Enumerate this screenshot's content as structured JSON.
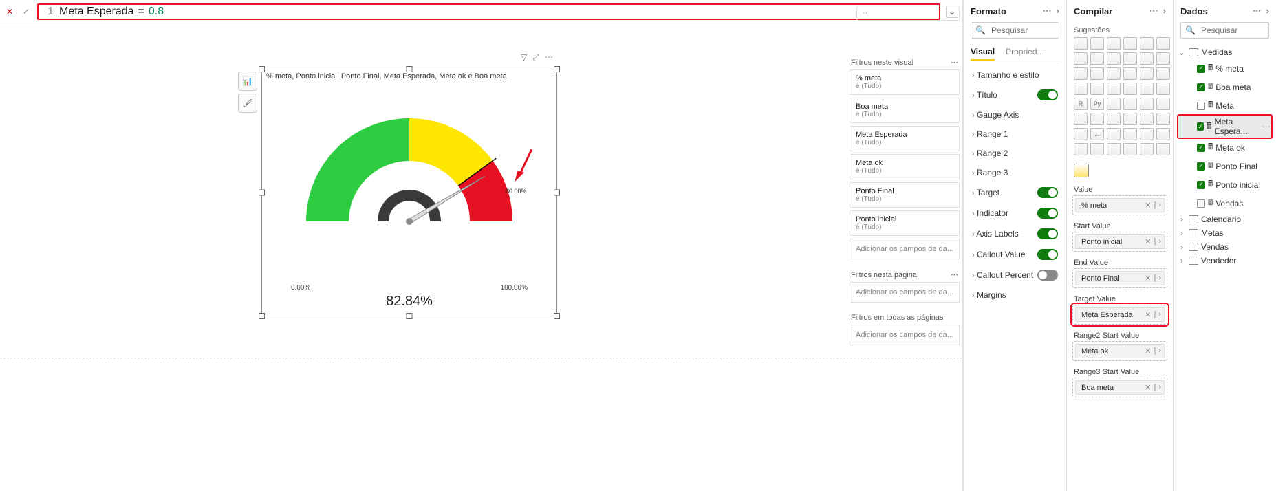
{
  "formula": {
    "line": "1",
    "lhs": "Meta Esperada",
    "op": "=",
    "rhs": "0.8"
  },
  "visual": {
    "title": "% meta, Ponto inicial, Ponto Final, Meta Esperada, Meta ok e Boa meta",
    "callout": "82.84%",
    "axis_min": "0.00%",
    "axis_max": "100.00%",
    "target_label": "80.00%",
    "gauge": {
      "value_pct": 82.84,
      "ranges": [
        {
          "from": 0,
          "to": 50,
          "color": "#2ecc40"
        },
        {
          "from": 50,
          "to": 80,
          "color": "#ffe600"
        },
        {
          "from": 80,
          "to": 100,
          "color": "#e81123"
        }
      ],
      "target_pct": 80,
      "track_inner_color": "#3a3a3a",
      "track_bg": "#e8e8e8"
    },
    "header_icons": [
      "filter-icon",
      "focus-icon",
      "more-icon"
    ],
    "side_tools": [
      "chart-type-icon",
      "format-paint-icon"
    ]
  },
  "filters": {
    "section1_title": "Filtros neste visual",
    "items": [
      {
        "name": "% meta",
        "value": "é (Tudo)"
      },
      {
        "name": "Boa meta",
        "value": "é (Tudo)"
      },
      {
        "name": "Meta Esperada",
        "value": "é (Tudo)"
      },
      {
        "name": "Meta ok",
        "value": "é (Tudo)"
      },
      {
        "name": "Ponto Final",
        "value": "é (Tudo)"
      },
      {
        "name": "Ponto inicial",
        "value": "é (Tudo)"
      }
    ],
    "add_placeholder": "Adicionar os campos de da...",
    "section2_title": "Filtros nesta página",
    "section3_title": "Filtros em todas as páginas"
  },
  "formato": {
    "title": "Formato",
    "search_placeholder": "Pesquisar",
    "tabs": {
      "visual": "Visual",
      "general": "Propried..."
    },
    "rows": [
      {
        "label": "Tamanho e estilo",
        "toggle": null
      },
      {
        "label": "Título",
        "toggle": true
      },
      {
        "label": "Gauge Axis",
        "toggle": null
      },
      {
        "label": "Range 1",
        "toggle": null
      },
      {
        "label": "Range 2",
        "toggle": null
      },
      {
        "label": "Range 3",
        "toggle": null
      },
      {
        "label": "Target",
        "toggle": true
      },
      {
        "label": "Indicator",
        "toggle": true
      },
      {
        "label": "Axis Labels",
        "toggle": true
      },
      {
        "label": "Callout Value",
        "toggle": true
      },
      {
        "label": "Callout Percent",
        "toggle": false
      },
      {
        "label": "Margins",
        "toggle": null
      }
    ]
  },
  "compilar": {
    "title": "Compilar",
    "subhead": "Sugestões",
    "wells": [
      {
        "label": "Value",
        "chip": "% meta",
        "highlight": false
      },
      {
        "label": "Start Value",
        "chip": "Ponto inicial",
        "highlight": false
      },
      {
        "label": "End Value",
        "chip": "Ponto Final",
        "highlight": false
      },
      {
        "label": "Target Value",
        "chip": "Meta Esperada",
        "highlight": true
      },
      {
        "label": "Range2 Start Value",
        "chip": "Meta ok",
        "highlight": false
      },
      {
        "label": "Range3 Start Value",
        "chip": "Boa meta",
        "highlight": false
      }
    ],
    "viz_labels": [
      "",
      "",
      "",
      "",
      "",
      "",
      "",
      "",
      "",
      "",
      "",
      "",
      "",
      "",
      "",
      "",
      "",
      "",
      "",
      "",
      "",
      "",
      "",
      "",
      "R",
      "Py",
      "",
      "",
      "",
      "",
      "",
      "",
      "",
      "",
      "",
      "",
      "",
      "...",
      "",
      "",
      "",
      "",
      "",
      "",
      "",
      "",
      "",
      ""
    ]
  },
  "dados": {
    "title": "Dados",
    "search_placeholder": "Pesquisar",
    "tree": {
      "tables": [
        {
          "name": "Medidas",
          "expanded": true,
          "measures": [
            {
              "name": "% meta",
              "checked": true
            },
            {
              "name": "Boa meta",
              "checked": true
            },
            {
              "name": "Meta",
              "checked": false
            },
            {
              "name": "Meta Espera...",
              "checked": true,
              "selected": true
            },
            {
              "name": "Meta ok",
              "checked": true
            },
            {
              "name": "Ponto Final",
              "checked": true
            },
            {
              "name": "Ponto inicial",
              "checked": true
            },
            {
              "name": "Vendas",
              "checked": false
            }
          ]
        },
        {
          "name": "Calendario",
          "expanded": false
        },
        {
          "name": "Metas",
          "expanded": false
        },
        {
          "name": "Vendas",
          "expanded": false
        },
        {
          "name": "Vendedor",
          "expanded": false
        }
      ]
    }
  }
}
